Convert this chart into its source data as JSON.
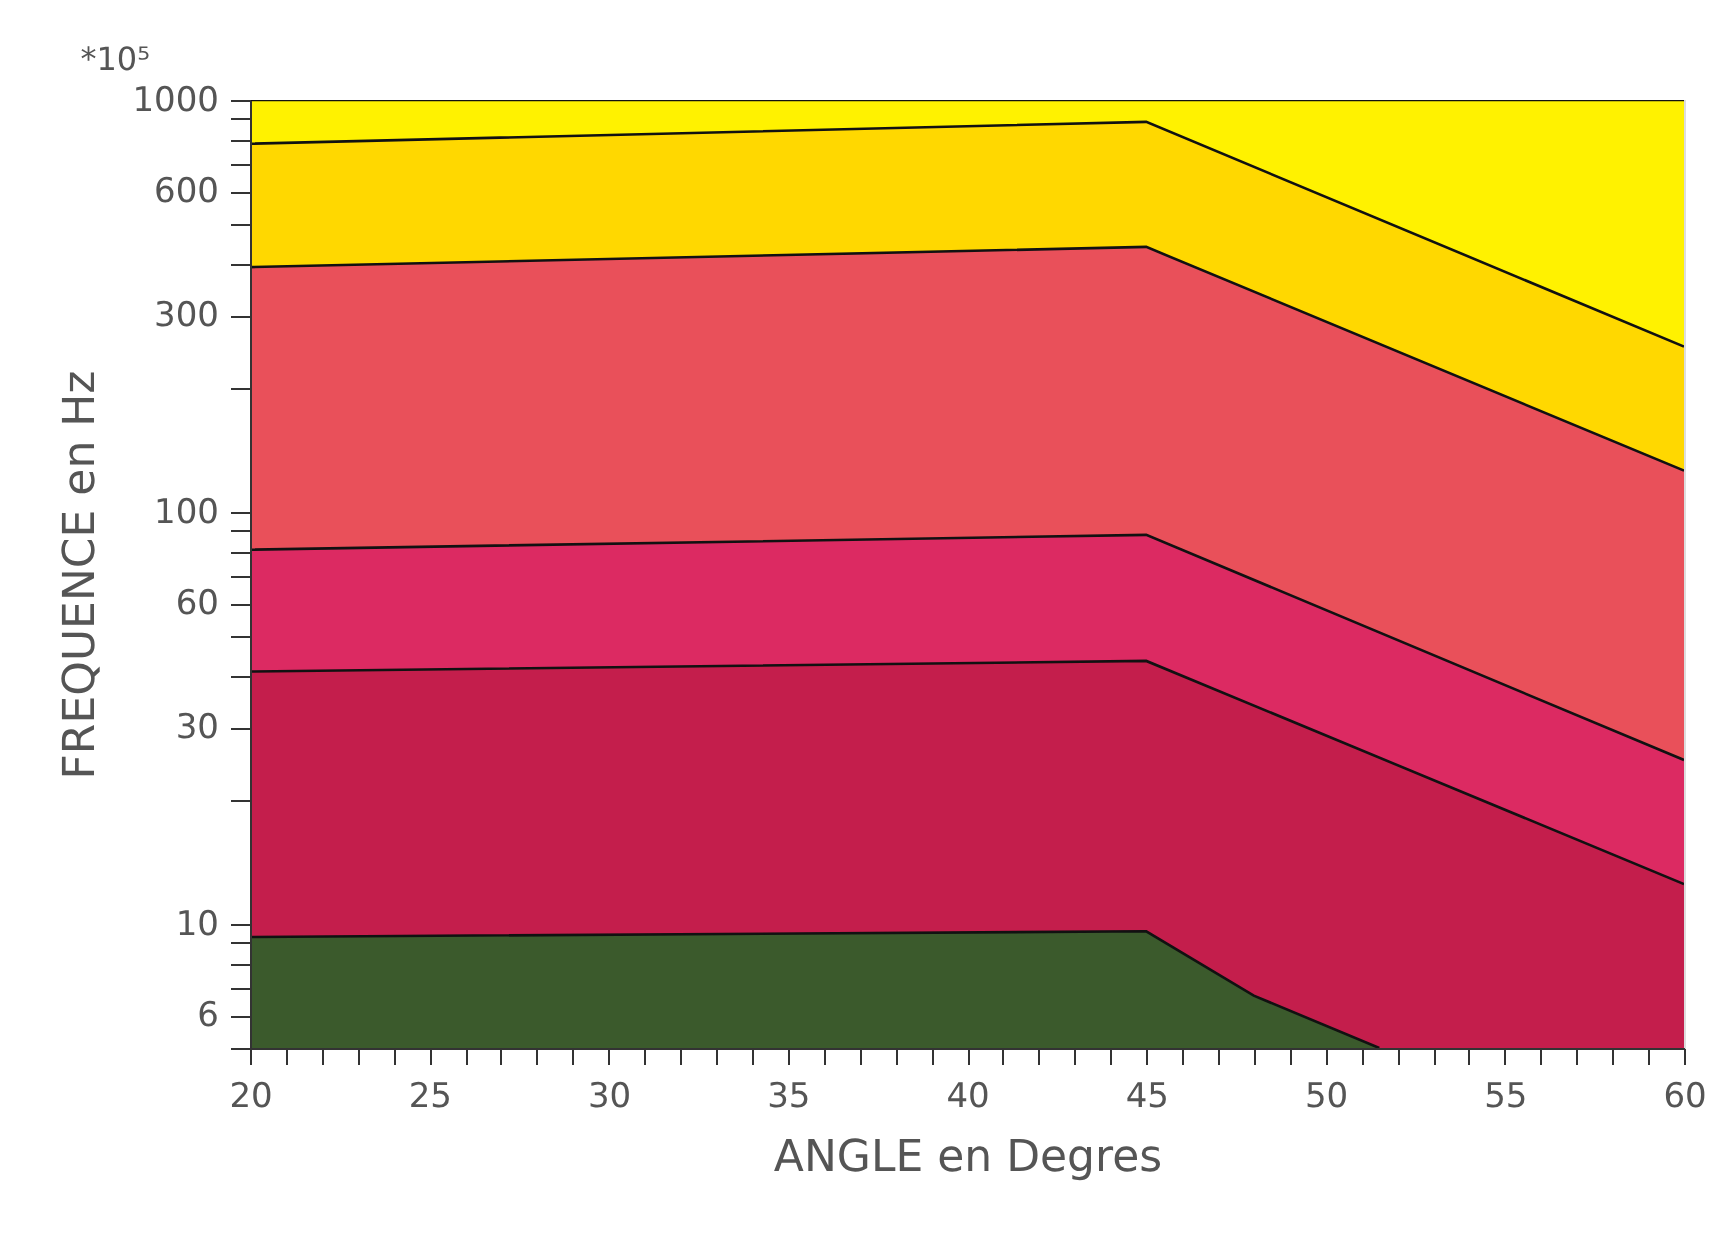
{
  "chart_data": {
    "type": "area",
    "xlabel": "ANGLE en Degres",
    "ylabel": "FREQUENCE en Hz",
    "annotations": [
      "*10⁵"
    ],
    "log": "y",
    "grid": false,
    "xlim": [
      20,
      60
    ],
    "ylim": [
      5,
      1000
    ],
    "xticks": [
      20,
      {
        "value": 21,
        "label": null
      },
      {
        "value": 22,
        "label": null
      },
      {
        "value": 23,
        "label": null
      },
      {
        "value": 24,
        "label": null
      },
      25,
      {
        "value": 26,
        "label": null
      },
      {
        "value": 27,
        "label": null
      },
      {
        "value": 28,
        "label": null
      },
      {
        "value": 29,
        "label": null
      },
      30,
      {
        "value": 31,
        "label": null
      },
      {
        "value": 32,
        "label": null
      },
      {
        "value": 33,
        "label": null
      },
      {
        "value": 34,
        "label": null
      },
      35,
      {
        "value": 36,
        "label": null
      },
      {
        "value": 37,
        "label": null
      },
      {
        "value": 38,
        "label": null
      },
      {
        "value": 39,
        "label": null
      },
      40,
      {
        "value": 41,
        "label": null
      },
      {
        "value": 42,
        "label": null
      },
      {
        "value": 43,
        "label": null
      },
      {
        "value": 44,
        "label": null
      },
      45,
      {
        "value": 46,
        "label": null
      },
      {
        "value": 47,
        "label": null
      },
      {
        "value": 48,
        "label": null
      },
      {
        "value": 49,
        "label": null
      },
      50,
      {
        "value": 51,
        "label": null
      },
      {
        "value": 52,
        "label": null
      },
      {
        "value": 53,
        "label": null
      },
      {
        "value": 54,
        "label": null
      },
      55,
      {
        "value": 56,
        "label": null
      },
      {
        "value": 57,
        "label": null
      },
      {
        "value": 58,
        "label": null
      },
      {
        "value": 59,
        "label": null
      },
      60
    ],
    "yticks": [
      {
        "value": 5,
        "label": null
      },
      6,
      {
        "value": 7,
        "label": null
      },
      {
        "value": 8,
        "label": null
      },
      {
        "value": 9,
        "label": null
      },
      10,
      {
        "value": 20,
        "label": null
      },
      30,
      {
        "value": 40,
        "label": null
      },
      {
        "value": 50,
        "label": null
      },
      60,
      {
        "value": 70,
        "label": null
      },
      {
        "value": 80,
        "label": null
      },
      {
        "value": 90,
        "label": null
      },
      100,
      {
        "value": 200,
        "label": null
      },
      300,
      {
        "value": 400,
        "label": null
      },
      {
        "value": 500,
        "label": null
      },
      600,
      {
        "value": 700,
        "label": null
      },
      {
        "value": 800,
        "label": null
      },
      {
        "value": 900,
        "label": null
      },
      1000
    ],
    "series": [
      {
        "color": "#fff200",
        "x": [
          20,
          60
        ],
        "values": [
          1000,
          1000
        ]
      },
      {
        "color": "#ffd800",
        "x": [
          20,
          45,
          60
        ],
        "values": [
          783,
          885,
          252
        ]
      },
      {
        "color": "#e9505a",
        "x": [
          20,
          45,
          60
        ],
        "values": [
          393,
          440,
          126
        ]
      },
      {
        "color": "#dc2a62",
        "x": [
          20,
          45,
          60
        ],
        "values": [
          81,
          88,
          25
        ]
      },
      {
        "color": "#c41e4c",
        "x": [
          20,
          45,
          60
        ],
        "values": [
          41,
          43.5,
          12.5
        ]
      },
      {
        "color": "#3b5a2c",
        "x": [
          20,
          45,
          48,
          51.5
        ],
        "values": [
          9.3,
          9.6,
          6.7,
          5
        ]
      }
    ]
  }
}
